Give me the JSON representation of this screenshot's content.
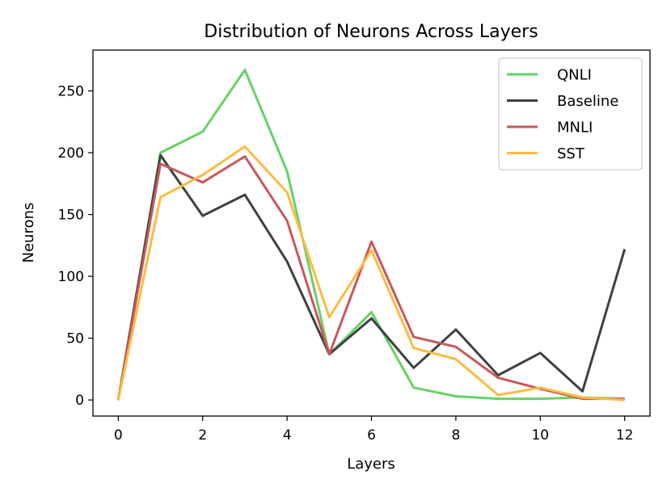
{
  "chart_data": {
    "type": "line",
    "title": "Distribution of Neurons Across Layers",
    "xlabel": "Layers",
    "ylabel": "Neurons",
    "x": [
      0,
      1,
      2,
      3,
      4,
      5,
      6,
      7,
      8,
      9,
      10,
      11,
      12
    ],
    "xlim": [
      -0.6,
      12.6
    ],
    "ylim": [
      -13,
      283
    ],
    "xticks": [
      0,
      2,
      4,
      6,
      8,
      10,
      12
    ],
    "yticks": [
      0,
      50,
      100,
      150,
      200,
      250
    ],
    "grid": false,
    "legend_position": "top-right",
    "series": [
      {
        "name": "QNLI",
        "color": "#66d266",
        "values": [
          0,
          200,
          217,
          267,
          185,
          37,
          71,
          10,
          3,
          1,
          1,
          2,
          1
        ]
      },
      {
        "name": "Baseline",
        "color": "#404040",
        "values": [
          0,
          198,
          149,
          166,
          112,
          37,
          66,
          26,
          57,
          20,
          38,
          7,
          122
        ]
      },
      {
        "name": "MNLI",
        "color": "#c9575a",
        "values": [
          0,
          191,
          176,
          197,
          145,
          37,
          128,
          51,
          43,
          18,
          9,
          1,
          1
        ]
      },
      {
        "name": "SST",
        "color": "#fdbb42",
        "values": [
          0,
          164,
          182,
          205,
          168,
          67,
          121,
          42,
          33,
          4,
          10,
          2,
          0
        ]
      }
    ]
  }
}
